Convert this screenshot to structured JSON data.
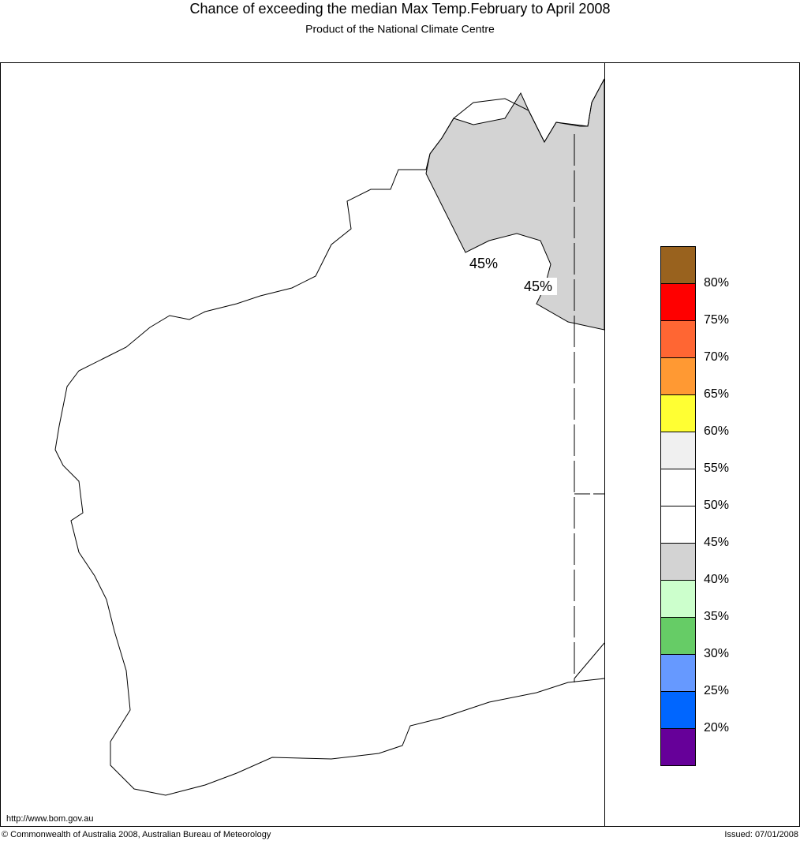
{
  "header": {
    "title": "Chance of exceeding the median Max Temp.February to April 2008",
    "subtitle": "Product of the National Climate Centre"
  },
  "map": {
    "contour_labels": [
      "45%",
      "45%"
    ]
  },
  "legend": {
    "colors": [
      "#99621e",
      "#ff0000",
      "#ff6633",
      "#ff9933",
      "#ffff33",
      "#f0f0f0",
      "#ffffff",
      "#ffffff",
      "#d3d3d3",
      "#ccffcc",
      "#66cc66",
      "#6699ff",
      "#0066ff",
      "#660099"
    ],
    "labels": [
      "80%",
      "75%",
      "70%",
      "65%",
      "60%",
      "55%",
      "50%",
      "45%",
      "40%",
      "35%",
      "30%",
      "25%",
      "20%"
    ]
  },
  "footer": {
    "url": "http://www.bom.gov.au",
    "copyright": "© Commonwealth of Australia 2008, Australian Bureau of Meteorology",
    "issued": "Issued: 07/01/2008"
  }
}
